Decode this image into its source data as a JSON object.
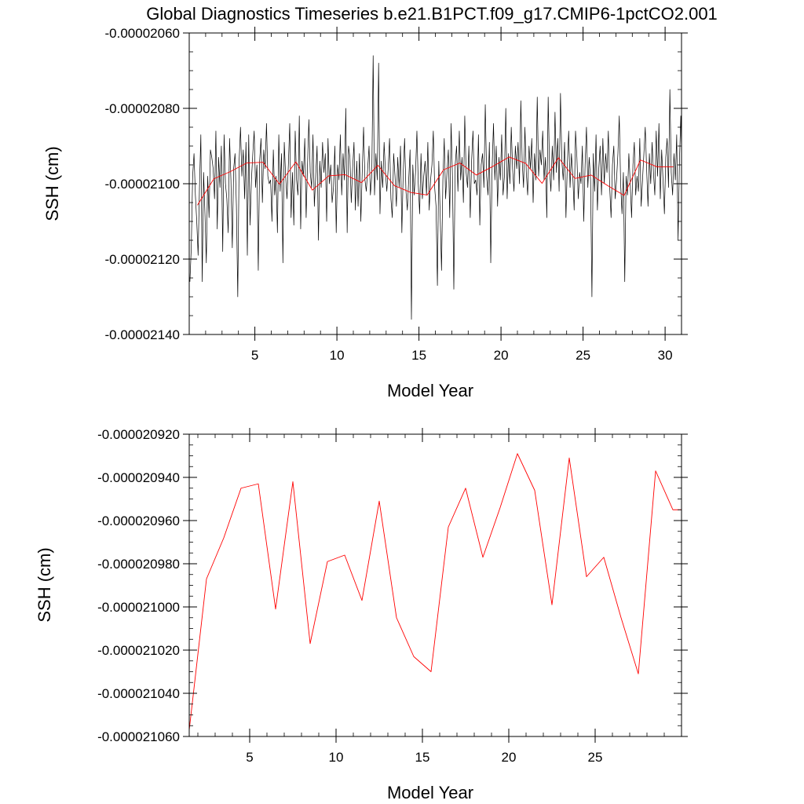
{
  "figure_title": "Global Diagnostics Timeseries b.e21.B1PCT.f09_g17.CMIP6-1pctCO2.001",
  "colors": {
    "monthly": "#000000",
    "annual": "#ff0000",
    "frame": "#000000"
  },
  "chart_data": [
    {
      "type": "line",
      "xlabel": "Model Year",
      "ylabel": "SSH (cm)",
      "xlim": [
        1,
        31
      ],
      "ylim": [
        -2.14e-05,
        -2.06e-05
      ],
      "x_ticks": [
        5,
        10,
        15,
        20,
        25,
        30
      ],
      "y_ticks": [
        "-0.00002060",
        "-0.00002080",
        "-0.00002100",
        "-0.00002120",
        "-0.00002140"
      ],
      "grid": false,
      "series": [
        {
          "color": "#000000",
          "x_start": 1.0417,
          "x_step": 0.08333,
          "values": [
            -2.126e-05,
            -2.117e-05,
            -2.098e-05,
            -2.092e-05,
            -2.103e-05,
            -2.11e-05,
            -2.119e-05,
            -2.101e-05,
            -2.087e-05,
            -2.126e-05,
            -2.097e-05,
            -2.108e-05,
            -2.121e-05,
            -2.098e-05,
            -2.109e-05,
            -2.091e-05,
            -2.093e-05,
            -2.096e-05,
            -2.104e-05,
            -2.086e-05,
            -2.112e-05,
            -2.093e-05,
            -2.101e-05,
            -2.09e-05,
            -2.118e-05,
            -2.087e-05,
            -2.1e-05,
            -2.104e-05,
            -2.113e-05,
            -2.088e-05,
            -2.099e-05,
            -2.117e-05,
            -2.096e-05,
            -2.092e-05,
            -2.106e-05,
            -2.13e-05,
            -2.094e-05,
            -2.085e-05,
            -2.098e-05,
            -2.091e-05,
            -2.104e-05,
            -2.089e-05,
            -2.119e-05,
            -2.087e-05,
            -2.111e-05,
            -2.099e-05,
            -2.092e-05,
            -2.086e-05,
            -2.101e-05,
            -2.095e-05,
            -2.123e-05,
            -2.094e-05,
            -2.088e-05,
            -2.105e-05,
            -2.091e-05,
            -2.096e-05,
            -2.084e-05,
            -2.098e-05,
            -2.1e-05,
            -2.099e-05,
            -2.11e-05,
            -2.091e-05,
            -2.103e-05,
            -2.098e-05,
            -2.113e-05,
            -2.087e-05,
            -2.102e-05,
            -2.092e-05,
            -2.121e-05,
            -2.089e-05,
            -2.098e-05,
            -2.104e-05,
            -2.095e-05,
            -2.084e-05,
            -2.109e-05,
            -2.097e-05,
            -2.111e-05,
            -2.086e-05,
            -2.099e-05,
            -2.103e-05,
            -2.082e-05,
            -2.112e-05,
            -2.094e-05,
            -2.098e-05,
            -2.088e-05,
            -2.109e-05,
            -2.095e-05,
            -2.083e-05,
            -2.097e-05,
            -2.101e-05,
            -2.087e-05,
            -2.106e-05,
            -2.098e-05,
            -2.09e-05,
            -2.115e-05,
            -2.094e-05,
            -2.101e-05,
            -2.089e-05,
            -2.097e-05,
            -2.092e-05,
            -2.11e-05,
            -2.088e-05,
            -2.1e-05,
            -2.095e-05,
            -2.105e-05,
            -2.101e-05,
            -2.09e-05,
            -2.113e-05,
            -2.095e-05,
            -2.099e-05,
            -2.087e-05,
            -2.103e-05,
            -2.092e-05,
            -2.099e-05,
            -2.08e-05,
            -2.113e-05,
            -2.09e-05,
            -2.093e-05,
            -2.105e-05,
            -2.096e-05,
            -2.089e-05,
            -2.107e-05,
            -2.094e-05,
            -2.106e-05,
            -2.092e-05,
            -2.11e-05,
            -2.097e-05,
            -2.085e-05,
            -2.099e-05,
            -2.102e-05,
            -2.096e-05,
            -2.09e-05,
            -2.103e-05,
            -2.098e-05,
            -2.066e-05,
            -2.103e-05,
            -2.092e-05,
            -2.099e-05,
            -2.068e-05,
            -2.108e-05,
            -2.094e-05,
            -2.101e-05,
            -2.089e-05,
            -2.097e-05,
            -2.102e-05,
            -2.096e-05,
            -2.088e-05,
            -2.104e-05,
            -2.109e-05,
            -2.092e-05,
            -2.098e-05,
            -2.106e-05,
            -2.093e-05,
            -2.101e-05,
            -2.09e-05,
            -2.113e-05,
            -2.097e-05,
            -2.088e-05,
            -2.102e-05,
            -2.107e-05,
            -2.099e-05,
            -2.091e-05,
            -2.136e-05,
            -2.095e-05,
            -2.103e-05,
            -2.097e-05,
            -2.086e-05,
            -2.1e-05,
            -2.108e-05,
            -2.092e-05,
            -2.104e-05,
            -2.098e-05,
            -2.094e-05,
            -2.103e-05,
            -2.089e-05,
            -2.107e-05,
            -2.099e-05,
            -2.095e-05,
            -2.086e-05,
            -2.101e-05,
            -2.106e-05,
            -2.127e-05,
            -2.094e-05,
            -2.108e-05,
            -2.123e-05,
            -2.099e-05,
            -2.088e-05,
            -2.104e-05,
            -2.097e-05,
            -2.091e-05,
            -2.109e-05,
            -2.084e-05,
            -2.098e-05,
            -2.128e-05,
            -2.095e-05,
            -2.09e-05,
            -2.102e-05,
            -2.086e-05,
            -2.099e-05,
            -2.093e-05,
            -2.105e-05,
            -2.082e-05,
            -2.097e-05,
            -2.101e-05,
            -2.09e-05,
            -2.109e-05,
            -2.094e-05,
            -2.086e-05,
            -2.1e-05,
            -2.099e-05,
            -2.103e-05,
            -2.087e-05,
            -2.111e-05,
            -2.095e-05,
            -2.092e-05,
            -2.101e-05,
            -2.079e-05,
            -2.098e-05,
            -2.103e-05,
            -2.089e-05,
            -2.121e-05,
            -2.096e-05,
            -2.084e-05,
            -2.099e-05,
            -2.09e-05,
            -2.106e-05,
            -2.093e-05,
            -2.099e-05,
            -2.087e-05,
            -2.103e-05,
            -2.098e-05,
            -2.08e-05,
            -2.104e-05,
            -2.092e-05,
            -2.1e-05,
            -2.085e-05,
            -2.096e-05,
            -2.102e-05,
            -2.09e-05,
            -2.096e-05,
            -2.089e-05,
            -2.1e-05,
            -2.078e-05,
            -2.094e-05,
            -2.101e-05,
            -2.085e-05,
            -2.097e-05,
            -2.103e-05,
            -2.09e-05,
            -2.096e-05,
            -2.088e-05,
            -2.105e-05,
            -2.092e-05,
            -2.099e-05,
            -2.077e-05,
            -2.098e-05,
            -2.091e-05,
            -2.095e-05,
            -2.086e-05,
            -2.099e-05,
            -2.093e-05,
            -2.109e-05,
            -2.077e-05,
            -2.096e-05,
            -2.102e-05,
            -2.09e-05,
            -2.099e-05,
            -2.081e-05,
            -2.097e-05,
            -2.088e-05,
            -2.102e-05,
            -2.076e-05,
            -2.094e-05,
            -2.099e-05,
            -2.089e-05,
            -2.109e-05,
            -2.095e-05,
            -2.086e-05,
            -2.101e-05,
            -2.092e-05,
            -2.098e-05,
            -2.107e-05,
            -2.086e-05,
            -2.093e-05,
            -2.104e-05,
            -2.097e-05,
            -2.1e-05,
            -2.09e-05,
            -2.11e-05,
            -2.095e-05,
            -2.085e-05,
            -2.101e-05,
            -2.093e-05,
            -2.099e-05,
            -2.13e-05,
            -2.092e-05,
            -2.102e-05,
            -2.087e-05,
            -2.107e-05,
            -2.096e-05,
            -2.09e-05,
            -2.103e-05,
            -2.088e-05,
            -2.1e-05,
            -2.092e-05,
            -2.097e-05,
            -2.086e-05,
            -2.101e-05,
            -2.109e-05,
            -2.095e-05,
            -2.09e-05,
            -2.104e-05,
            -2.099e-05,
            -2.092e-05,
            -2.082e-05,
            -2.1e-05,
            -2.108e-05,
            -2.097e-05,
            -2.126e-05,
            -2.098e-05,
            -2.103e-05,
            -2.092e-05,
            -2.1e-05,
            -2.109e-05,
            -2.095e-05,
            -2.089e-05,
            -2.103e-05,
            -2.098e-05,
            -2.102e-05,
            -2.088e-05,
            -2.106e-05,
            -2.099e-05,
            -2.092e-05,
            -2.085e-05,
            -2.096e-05,
            -2.106e-05,
            -2.092e-05,
            -2.1e-05,
            -2.089e-05,
            -2.097e-05,
            -2.103e-05,
            -2.086e-05,
            -2.098e-05,
            -2.084e-05,
            -2.104e-05,
            -2.091e-05,
            -2.099e-05,
            -2.108e-05,
            -2.093e-05,
            -2.088e-05,
            -2.101e-05,
            -2.075e-05,
            -2.097e-05,
            -2.103e-05,
            -2.092e-05,
            -2.099e-05,
            -2.087e-05,
            -2.115e-05,
            -2.094e-05,
            -2.082e-05,
            -2.1e-05
          ]
        },
        {
          "color": "#ff0000",
          "x": [
            1.5,
            2.5,
            3.5,
            4.5,
            5.5,
            6.5,
            7.5,
            8.5,
            9.5,
            10.5,
            11.5,
            12.5,
            13.5,
            14.5,
            15.5,
            16.5,
            17.5,
            18.5,
            19.5,
            20.5,
            21.5,
            22.5,
            23.5,
            24.5,
            25.5,
            26.5,
            27.5,
            28.5,
            29.5,
            30.5
          ],
          "values": [
            -2.1057e-05,
            -2.0987e-05,
            -2.0968e-05,
            -2.0945e-05,
            -2.0943e-05,
            -2.1001e-05,
            -2.0942e-05,
            -2.1017e-05,
            -2.0979e-05,
            -2.0976e-05,
            -2.0997e-05,
            -2.0951e-05,
            -2.1005e-05,
            -2.1023e-05,
            -2.103e-05,
            -2.0963e-05,
            -2.0945e-05,
            -2.0977e-05,
            -2.0954e-05,
            -2.0929e-05,
            -2.0946e-05,
            -2.0999e-05,
            -2.0931e-05,
            -2.0986e-05,
            -2.0977e-05,
            -2.1005e-05,
            -2.1031e-05,
            -2.0937e-05,
            -2.0955e-05,
            -2.0955e-05
          ]
        }
      ]
    },
    {
      "type": "line",
      "xlabel": "Model Year",
      "ylabel": "SSH (cm)",
      "xlim": [
        1.5,
        30
      ],
      "ylim": [
        -2.106e-05,
        -2.092e-05
      ],
      "x_ticks": [
        5,
        10,
        15,
        20,
        25
      ],
      "y_ticks": [
        "-0.000020920",
        "-0.000020940",
        "-0.000020960",
        "-0.000020980",
        "-0.000021000",
        "-0.000021020",
        "-0.000021040",
        "-0.000021060"
      ],
      "grid": false,
      "series": [
        {
          "color": "#ff0000",
          "x": [
            1.5,
            2.5,
            3.5,
            4.5,
            5.5,
            6.5,
            7.5,
            8.5,
            9.5,
            10.5,
            11.5,
            12.5,
            13.5,
            14.5,
            15.5,
            16.5,
            17.5,
            18.5,
            19.5,
            20.5,
            21.5,
            22.5,
            23.5,
            24.5,
            25.5,
            26.5,
            27.5,
            28.5,
            29.5,
            30.5
          ],
          "values": [
            -2.1057e-05,
            -2.0987e-05,
            -2.0968e-05,
            -2.0945e-05,
            -2.0943e-05,
            -2.1001e-05,
            -2.0942e-05,
            -2.1017e-05,
            -2.0979e-05,
            -2.0976e-05,
            -2.0997e-05,
            -2.0951e-05,
            -2.1005e-05,
            -2.1023e-05,
            -2.103e-05,
            -2.0963e-05,
            -2.0945e-05,
            -2.0977e-05,
            -2.0954e-05,
            -2.0929e-05,
            -2.0946e-05,
            -2.0999e-05,
            -2.0931e-05,
            -2.0986e-05,
            -2.0977e-05,
            -2.1005e-05,
            -2.1031e-05,
            -2.0937e-05,
            -2.0955e-05,
            -2.0955e-05
          ]
        }
      ]
    }
  ]
}
